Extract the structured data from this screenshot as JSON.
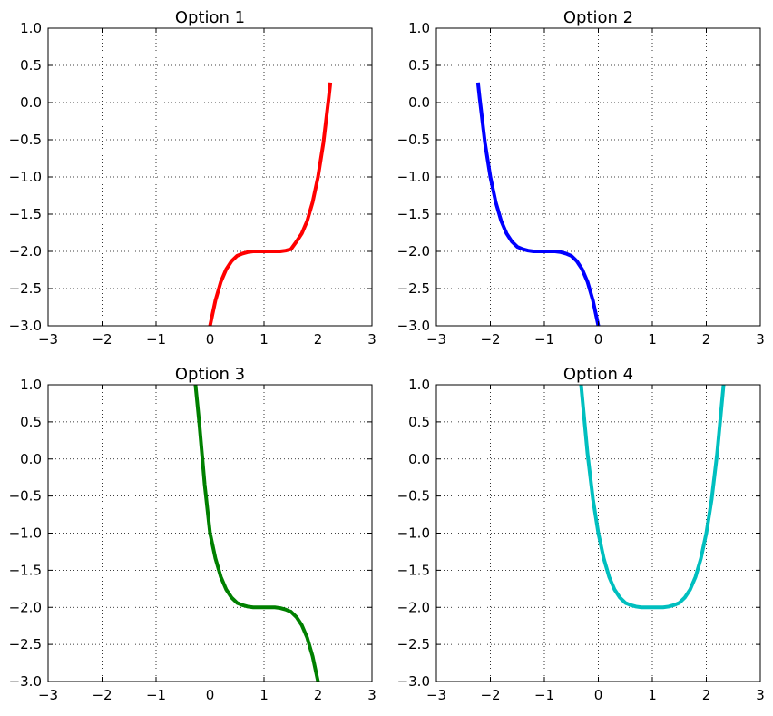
{
  "chart_data": [
    {
      "type": "line",
      "title": "Option 1",
      "xlabel": "",
      "ylabel": "",
      "xlim": [
        -3,
        3
      ],
      "ylim": [
        -3,
        1
      ],
      "xticks": [
        -3,
        -2,
        -1,
        0,
        1,
        2,
        3
      ],
      "xtick_labels": [
        "−3",
        "−2",
        "−1",
        "0",
        "1",
        "2",
        "3"
      ],
      "yticks": [
        1.0,
        0.5,
        0.0,
        -0.5,
        -1.0,
        -1.5,
        -2.0,
        -2.5,
        -3.0
      ],
      "ytick_labels": [
        "1.0",
        "0.5",
        "0.0",
        "−0.5",
        "−1.0",
        "−1.5",
        "−2.0",
        "−2.5",
        "−3.0"
      ],
      "grid": true,
      "series": [
        {
          "color": "#ff0000",
          "x": [
            0.0,
            0.1,
            0.2,
            0.3,
            0.4,
            0.5,
            0.6,
            0.7,
            0.8,
            0.9,
            1.0,
            1.1,
            1.2,
            1.3,
            1.4,
            1.5,
            1.6,
            1.7,
            1.8,
            1.9,
            2.0,
            2.1,
            2.2,
            2.23
          ],
          "y": [
            -3.0,
            -2.66,
            -2.41,
            -2.24,
            -2.13,
            -2.06,
            -2.03,
            -2.01,
            -2.0,
            -2.0,
            -2.0,
            -2.0,
            -2.0,
            -2.0,
            -1.99,
            -1.97,
            -1.87,
            -1.76,
            -1.59,
            -1.34,
            -1.0,
            -0.54,
            0.07,
            0.27
          ]
        }
      ]
    },
    {
      "type": "line",
      "title": "Option 2",
      "xlabel": "",
      "ylabel": "",
      "xlim": [
        -3,
        3
      ],
      "ylim": [
        -3,
        1
      ],
      "xticks": [
        -3,
        -2,
        -1,
        0,
        1,
        2,
        3
      ],
      "xtick_labels": [
        "−3",
        "−2",
        "−1",
        "0",
        "1",
        "2",
        "3"
      ],
      "yticks": [
        1.0,
        0.5,
        0.0,
        -0.5,
        -1.0,
        -1.5,
        -2.0,
        -2.5,
        -3.0
      ],
      "ytick_labels": [
        "1.0",
        "0.5",
        "0.0",
        "−0.5",
        "−1.0",
        "−1.5",
        "−2.0",
        "−2.5",
        "−3.0"
      ],
      "grid": true,
      "series": [
        {
          "color": "#0000ff",
          "x": [
            -2.23,
            -2.2,
            -2.1,
            -2.0,
            -1.9,
            -1.8,
            -1.7,
            -1.6,
            -1.5,
            -1.4,
            -1.3,
            -1.2,
            -1.1,
            -1.0,
            -0.9,
            -0.8,
            -0.7,
            -0.6,
            -0.5,
            -0.4,
            -0.3,
            -0.2,
            -0.1,
            0.0
          ],
          "y": [
            0.27,
            0.07,
            -0.54,
            -1.0,
            -1.34,
            -1.59,
            -1.76,
            -1.87,
            -1.94,
            -1.97,
            -1.99,
            -2.0,
            -2.0,
            -2.0,
            -2.0,
            -2.0,
            -2.01,
            -2.03,
            -2.06,
            -2.13,
            -2.24,
            -2.41,
            -2.66,
            -3.0
          ]
        }
      ]
    },
    {
      "type": "line",
      "title": "Option 3",
      "xlabel": "",
      "ylabel": "",
      "xlim": [
        -3,
        3
      ],
      "ylim": [
        -3,
        1
      ],
      "xticks": [
        -3,
        -2,
        -1,
        0,
        1,
        2,
        3
      ],
      "xtick_labels": [
        "−3",
        "−2",
        "−1",
        "0",
        "1",
        "2",
        "3"
      ],
      "yticks": [
        1.0,
        0.5,
        0.0,
        -0.5,
        -1.0,
        -1.5,
        -2.0,
        -2.5,
        -3.0
      ],
      "ytick_labels": [
        "1.0",
        "0.5",
        "0.0",
        "−0.5",
        "−1.0",
        "−1.5",
        "−2.0",
        "−2.5",
        "−3.0"
      ],
      "grid": true,
      "series": [
        {
          "color": "#008000",
          "x": [
            -0.27,
            -0.2,
            -0.1,
            0.0,
            0.1,
            0.2,
            0.3,
            0.4,
            0.5,
            0.6,
            0.7,
            0.8,
            0.9,
            1.0,
            1.1,
            1.2,
            1.3,
            1.4,
            1.5,
            1.6,
            1.7,
            1.8,
            1.9,
            2.0
          ],
          "y": [
            1.0,
            0.49,
            -0.34,
            -1.0,
            -1.34,
            -1.59,
            -1.76,
            -1.87,
            -1.94,
            -1.97,
            -1.99,
            -2.0,
            -2.0,
            -2.0,
            -2.0,
            -2.0,
            -2.01,
            -2.03,
            -2.06,
            -2.13,
            -2.24,
            -2.41,
            -2.66,
            -3.0
          ]
        }
      ]
    },
    {
      "type": "line",
      "title": "Option 4",
      "xlabel": "",
      "ylabel": "",
      "xlim": [
        -3,
        3
      ],
      "ylim": [
        -3,
        1
      ],
      "xticks": [
        -3,
        -2,
        -1,
        0,
        1,
        2,
        3
      ],
      "xtick_labels": [
        "−3",
        "−2",
        "−1",
        "0",
        "1",
        "2",
        "3"
      ],
      "yticks": [
        1.0,
        0.5,
        0.0,
        -0.5,
        -1.0,
        -1.5,
        -2.0,
        -2.5,
        -3.0
      ],
      "ytick_labels": [
        "1.0",
        "0.5",
        "0.0",
        "−0.5",
        "−1.0",
        "−1.5",
        "−2.0",
        "−2.5",
        "−3.0"
      ],
      "grid": true,
      "series": [
        {
          "color": "#00bfbf",
          "x": [
            -0.32,
            -0.2,
            -0.1,
            0.0,
            0.1,
            0.2,
            0.3,
            0.4,
            0.5,
            0.6,
            0.7,
            0.8,
            0.9,
            1.0,
            1.1,
            1.2,
            1.3,
            1.4,
            1.5,
            1.6,
            1.7,
            1.8,
            1.9,
            2.0,
            2.1,
            2.2,
            2.32
          ],
          "y": [
            1.0,
            0.07,
            -0.54,
            -1.0,
            -1.34,
            -1.59,
            -1.76,
            -1.87,
            -1.94,
            -1.97,
            -1.99,
            -2.0,
            -2.0,
            -2.0,
            -2.0,
            -2.0,
            -1.99,
            -1.97,
            -1.94,
            -1.87,
            -1.76,
            -1.59,
            -1.34,
            -1.0,
            -0.54,
            0.07,
            1.0
          ]
        }
      ]
    }
  ]
}
